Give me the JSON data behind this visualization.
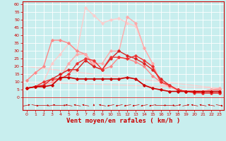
{
  "background_color": "#c8eeee",
  "grid_color": "#ffffff",
  "xlabel": "Vent moyen/en rafales ( km/h )",
  "x_ticks": [
    0,
    1,
    2,
    3,
    4,
    5,
    6,
    7,
    8,
    9,
    10,
    11,
    12,
    13,
    14,
    15,
    16,
    17,
    18,
    19,
    20,
    21,
    22,
    23
  ],
  "ylim": [
    -8,
    62
  ],
  "xlim": [
    -0.5,
    23.5
  ],
  "y_ticks": [
    0,
    5,
    10,
    15,
    20,
    25,
    30,
    35,
    40,
    45,
    50,
    55,
    60
  ],
  "series": [
    {
      "x": [
        0,
        1,
        2,
        3,
        4,
        5,
        6,
        7,
        8,
        9,
        10,
        11,
        12,
        13,
        14,
        15,
        16,
        17,
        18,
        19,
        20,
        21,
        22,
        23
      ],
      "y": [
        6,
        7,
        7,
        8,
        13,
        13,
        12,
        12,
        12,
        12,
        12,
        12,
        13,
        12,
        8,
        6,
        5,
        4,
        4,
        4,
        4,
        4,
        4,
        4
      ],
      "color": "#cc0000",
      "lw": 1.2,
      "marker": "D",
      "ms": 1.8,
      "zorder": 5
    },
    {
      "x": [
        0,
        1,
        2,
        3,
        4,
        5,
        6,
        7,
        8,
        9,
        10,
        11,
        12,
        13,
        14,
        15,
        16,
        17,
        18,
        19,
        20,
        21,
        22,
        23
      ],
      "y": [
        6,
        7,
        8,
        12,
        15,
        18,
        18,
        24,
        20,
        18,
        25,
        30,
        27,
        25,
        22,
        18,
        12,
        8,
        5,
        4,
        4,
        3,
        3,
        3
      ],
      "color": "#dd2222",
      "lw": 1.0,
      "marker": "D",
      "ms": 1.8,
      "zorder": 4
    },
    {
      "x": [
        0,
        1,
        2,
        3,
        4,
        5,
        6,
        7,
        8,
        9,
        10,
        11,
        12,
        13,
        14,
        15,
        16,
        17,
        18,
        19,
        20,
        21,
        22,
        23
      ],
      "y": [
        11,
        16,
        20,
        37,
        37,
        35,
        30,
        28,
        20,
        18,
        20,
        26,
        25,
        23,
        20,
        14,
        10,
        7,
        5,
        4,
        4,
        4,
        5,
        5
      ],
      "color": "#ff8888",
      "lw": 1.0,
      "marker": "D",
      "ms": 1.8,
      "zorder": 3
    },
    {
      "x": [
        0,
        1,
        2,
        3,
        4,
        5,
        6,
        7,
        8,
        9,
        10,
        11,
        12,
        13,
        14,
        15,
        16,
        17,
        18,
        19,
        20,
        21,
        22,
        23
      ],
      "y": [
        6,
        7,
        10,
        12,
        12,
        15,
        22,
        25,
        24,
        18,
        26,
        26,
        25,
        27,
        24,
        20,
        10,
        8,
        5,
        4,
        3,
        3,
        3,
        3
      ],
      "color": "#ee3333",
      "lw": 1.0,
      "marker": "D",
      "ms": 1.8,
      "zorder": 4
    },
    {
      "x": [
        0,
        1,
        2,
        3,
        4,
        5,
        6,
        7,
        8,
        9,
        10,
        11,
        12,
        13,
        14,
        15,
        16,
        17,
        18,
        19,
        20,
        21,
        22,
        23
      ],
      "y": [
        6,
        7,
        8,
        10,
        13,
        22,
        28,
        28,
        22,
        22,
        30,
        30,
        52,
        48,
        32,
        22,
        10,
        7,
        5,
        4,
        4,
        4,
        5,
        6
      ],
      "color": "#ffaaaa",
      "lw": 1.0,
      "marker": "D",
      "ms": 1.8,
      "zorder": 3
    },
    {
      "x": [
        0,
        1,
        2,
        3,
        4,
        5,
        6,
        7,
        8,
        9,
        10,
        11,
        12,
        13,
        14,
        15,
        16,
        17,
        18,
        19,
        20,
        21,
        22,
        23
      ],
      "y": [
        6,
        7,
        10,
        22,
        28,
        35,
        30,
        58,
        53,
        48,
        50,
        51,
        48,
        46,
        32,
        22,
        8,
        7,
        5,
        4,
        4,
        4,
        5,
        6
      ],
      "color": "#ffcccc",
      "lw": 1.0,
      "marker": "D",
      "ms": 1.8,
      "zorder": 2
    },
    {
      "x": [
        0,
        23
      ],
      "y": [
        20,
        6
      ],
      "color": "#ffcccc",
      "lw": 0.8,
      "marker": null,
      "ms": 0,
      "zorder": 1
    },
    {
      "x": [
        0,
        23
      ],
      "y": [
        10,
        6
      ],
      "color": "#ffcccc",
      "lw": 0.8,
      "marker": null,
      "ms": 0,
      "zorder": 1
    }
  ],
  "arrow_dirs": [
    45,
    135,
    90,
    45,
    90,
    315,
    315,
    315,
    0,
    315,
    225,
    225,
    225,
    225,
    225,
    225,
    90,
    90,
    45,
    45,
    315,
    315,
    315,
    135
  ],
  "xlabel_fontsize": 6.5,
  "tick_fontsize": 4.5
}
